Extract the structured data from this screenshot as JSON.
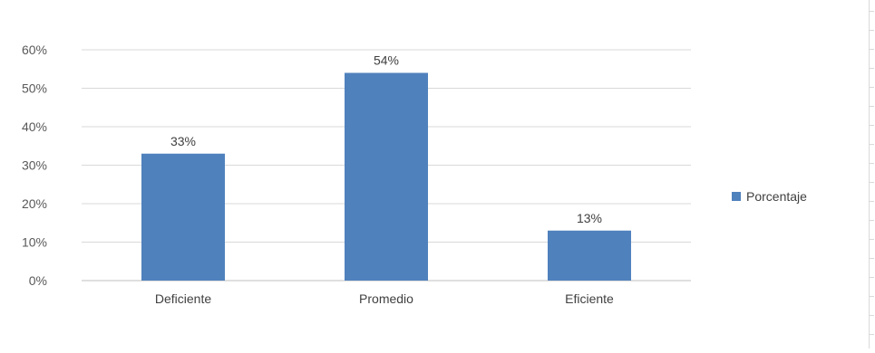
{
  "chart_data": {
    "type": "bar",
    "categories": [
      "Deficiente",
      "Promedio",
      "Eficiente"
    ],
    "series": [
      {
        "name": "Porcentaje",
        "values": [
          33,
          54,
          13
        ],
        "color": "#4f81bd"
      }
    ],
    "value_labels": [
      "33%",
      "54%",
      "13%"
    ],
    "y_ticks": [
      "0%",
      "10%",
      "20%",
      "30%",
      "40%",
      "50%",
      "60%"
    ],
    "ylim": [
      0,
      60
    ],
    "grid": true,
    "legend_position": "right",
    "title": "",
    "xlabel": "",
    "ylabel": ""
  }
}
